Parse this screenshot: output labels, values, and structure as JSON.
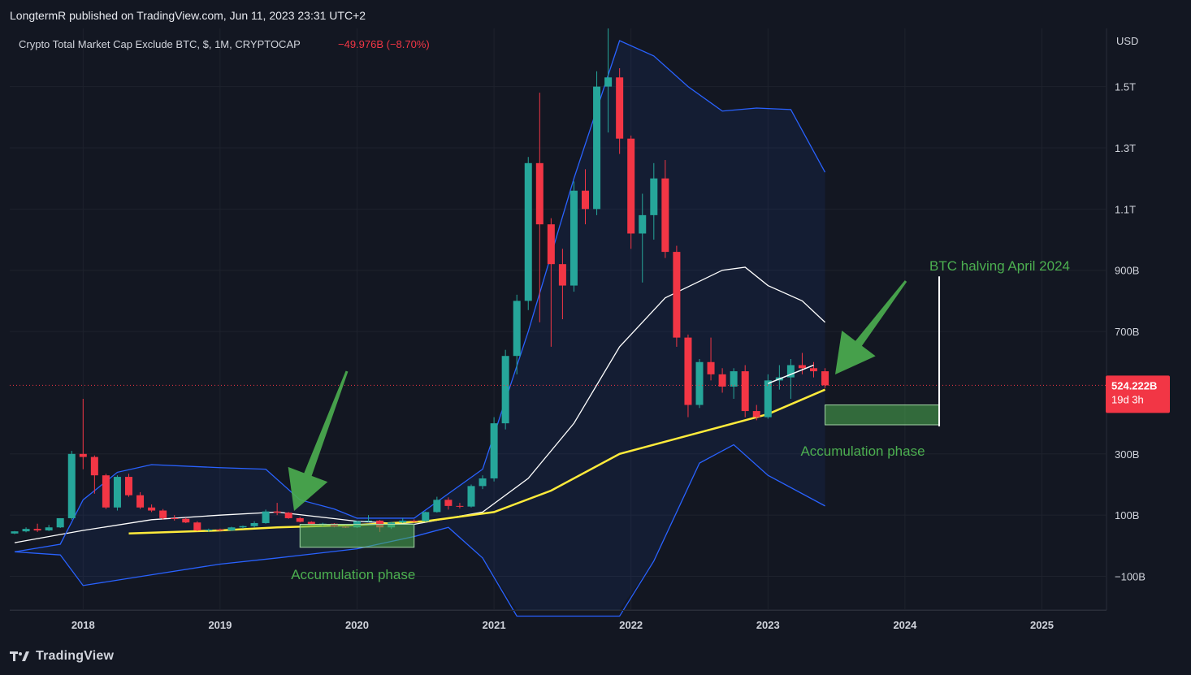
{
  "header": {
    "publisher_line": "LongtermR published on TradingView.com, Jun 11, 2023 23:31 UTC+2"
  },
  "legend": {
    "symbol": "Crypto Total Market Cap Exclude BTC, $, 1M, CRYPTOCAP",
    "change": "−49.976B (−8.70%)"
  },
  "price_tag": {
    "price": "524.222B",
    "countdown": "19d 3h",
    "color": "#f23645"
  },
  "footer": {
    "brand": "TradingView"
  },
  "colors": {
    "background": "#131722",
    "up": "#26a69a",
    "down": "#f23645",
    "band": "#2962ff",
    "ma_basis": "#ffffff",
    "ma_long": "#ffeb3b",
    "annotation": "#4caf50"
  },
  "chart_data": {
    "type": "candlestick",
    "title": "Crypto Total Market Cap Exclude BTC, $, 1M, CRYPTOCAP",
    "currency": "USD",
    "x": {
      "ticks": [
        "2018",
        "2019",
        "2020",
        "2021",
        "2022",
        "2023",
        "2024",
        "2025"
      ],
      "start": "2017-07",
      "end": "2025-08"
    },
    "y": {
      "ticks": [
        "1.5T",
        "1.3T",
        "1.1T",
        "900B",
        "700B",
        "300B",
        "100B",
        "−100B"
      ],
      "tick_values": [
        1500,
        1300,
        1100,
        900,
        700,
        300,
        100,
        -100
      ],
      "unit": "USD (billions)",
      "range": [
        -210,
        1690
      ]
    },
    "candles": [
      {
        "t": "2017-07",
        "o": 40,
        "h": 48,
        "l": 38,
        "c": 47
      },
      {
        "t": "2017-08",
        "o": 47,
        "h": 60,
        "l": 44,
        "c": 55
      },
      {
        "t": "2017-09",
        "o": 55,
        "h": 72,
        "l": 45,
        "c": 50
      },
      {
        "t": "2017-10",
        "o": 50,
        "h": 68,
        "l": 48,
        "c": 60
      },
      {
        "t": "2017-11",
        "o": 60,
        "h": 90,
        "l": 58,
        "c": 90
      },
      {
        "t": "2017-12",
        "o": 90,
        "h": 310,
        "l": 85,
        "c": 300
      },
      {
        "t": "2018-01",
        "o": 300,
        "h": 480,
        "l": 250,
        "c": 290
      },
      {
        "t": "2018-02",
        "o": 290,
        "h": 295,
        "l": 170,
        "c": 230
      },
      {
        "t": "2018-03",
        "o": 230,
        "h": 235,
        "l": 120,
        "c": 125
      },
      {
        "t": "2018-04",
        "o": 125,
        "h": 230,
        "l": 115,
        "c": 225
      },
      {
        "t": "2018-05",
        "o": 225,
        "h": 235,
        "l": 160,
        "c": 165
      },
      {
        "t": "2018-06",
        "o": 165,
        "h": 175,
        "l": 120,
        "c": 125
      },
      {
        "t": "2018-07",
        "o": 125,
        "h": 135,
        "l": 110,
        "c": 115
      },
      {
        "t": "2018-08",
        "o": 115,
        "h": 120,
        "l": 85,
        "c": 90
      },
      {
        "t": "2018-09",
        "o": 90,
        "h": 100,
        "l": 82,
        "c": 88
      },
      {
        "t": "2018-10",
        "o": 88,
        "h": 92,
        "l": 74,
        "c": 76
      },
      {
        "t": "2018-11",
        "o": 76,
        "h": 80,
        "l": 48,
        "c": 50
      },
      {
        "t": "2018-12",
        "o": 50,
        "h": 56,
        "l": 45,
        "c": 53
      },
      {
        "t": "2019-01",
        "o": 53,
        "h": 56,
        "l": 48,
        "c": 50
      },
      {
        "t": "2019-02",
        "o": 50,
        "h": 62,
        "l": 48,
        "c": 60
      },
      {
        "t": "2019-03",
        "o": 60,
        "h": 66,
        "l": 56,
        "c": 64
      },
      {
        "t": "2019-04",
        "o": 64,
        "h": 80,
        "l": 60,
        "c": 74
      },
      {
        "t": "2019-05",
        "o": 74,
        "h": 118,
        "l": 72,
        "c": 112
      },
      {
        "t": "2019-06",
        "o": 112,
        "h": 140,
        "l": 100,
        "c": 108
      },
      {
        "t": "2019-07",
        "o": 108,
        "h": 110,
        "l": 88,
        "c": 90
      },
      {
        "t": "2019-08",
        "o": 90,
        "h": 94,
        "l": 76,
        "c": 78
      },
      {
        "t": "2019-09",
        "o": 78,
        "h": 80,
        "l": 66,
        "c": 68
      },
      {
        "t": "2019-10",
        "o": 68,
        "h": 75,
        "l": 64,
        "c": 72
      },
      {
        "t": "2019-11",
        "o": 72,
        "h": 74,
        "l": 60,
        "c": 62
      },
      {
        "t": "2019-12",
        "o": 62,
        "h": 65,
        "l": 58,
        "c": 60
      },
      {
        "t": "2020-01",
        "o": 60,
        "h": 82,
        "l": 58,
        "c": 80
      },
      {
        "t": "2020-02",
        "o": 80,
        "h": 100,
        "l": 78,
        "c": 82
      },
      {
        "t": "2020-03",
        "o": 82,
        "h": 84,
        "l": 45,
        "c": 60
      },
      {
        "t": "2020-04",
        "o": 60,
        "h": 78,
        "l": 55,
        "c": 76
      },
      {
        "t": "2020-05",
        "o": 76,
        "h": 90,
        "l": 74,
        "c": 82
      },
      {
        "t": "2020-06",
        "o": 82,
        "h": 86,
        "l": 76,
        "c": 80
      },
      {
        "t": "2020-07",
        "o": 80,
        "h": 112,
        "l": 78,
        "c": 110
      },
      {
        "t": "2020-08",
        "o": 110,
        "h": 160,
        "l": 108,
        "c": 150
      },
      {
        "t": "2020-09",
        "o": 150,
        "h": 158,
        "l": 118,
        "c": 130
      },
      {
        "t": "2020-10",
        "o": 130,
        "h": 140,
        "l": 122,
        "c": 128
      },
      {
        "t": "2020-11",
        "o": 128,
        "h": 200,
        "l": 125,
        "c": 195
      },
      {
        "t": "2020-12",
        "o": 195,
        "h": 230,
        "l": 185,
        "c": 220
      },
      {
        "t": "2021-01",
        "o": 220,
        "h": 420,
        "l": 210,
        "c": 400
      },
      {
        "t": "2021-02",
        "o": 400,
        "h": 640,
        "l": 380,
        "c": 620
      },
      {
        "t": "2021-03",
        "o": 620,
        "h": 820,
        "l": 560,
        "c": 800
      },
      {
        "t": "2021-04",
        "o": 800,
        "h": 1270,
        "l": 770,
        "c": 1250
      },
      {
        "t": "2021-05",
        "o": 1250,
        "h": 1480,
        "l": 730,
        "c": 1050
      },
      {
        "t": "2021-06",
        "o": 1050,
        "h": 1070,
        "l": 650,
        "c": 920
      },
      {
        "t": "2021-07",
        "o": 920,
        "h": 970,
        "l": 740,
        "c": 850
      },
      {
        "t": "2021-08",
        "o": 850,
        "h": 1190,
        "l": 830,
        "c": 1160
      },
      {
        "t": "2021-09",
        "o": 1160,
        "h": 1230,
        "l": 1050,
        "c": 1100
      },
      {
        "t": "2021-10",
        "o": 1100,
        "h": 1550,
        "l": 1080,
        "c": 1500
      },
      {
        "t": "2021-11",
        "o": 1500,
        "h": 1690,
        "l": 1350,
        "c": 1530
      },
      {
        "t": "2021-12",
        "o": 1530,
        "h": 1560,
        "l": 1280,
        "c": 1330
      },
      {
        "t": "2022-01",
        "o": 1330,
        "h": 1340,
        "l": 970,
        "c": 1020
      },
      {
        "t": "2022-02",
        "o": 1020,
        "h": 1150,
        "l": 860,
        "c": 1080
      },
      {
        "t": "2022-03",
        "o": 1080,
        "h": 1250,
        "l": 1000,
        "c": 1200
      },
      {
        "t": "2022-04",
        "o": 1200,
        "h": 1260,
        "l": 940,
        "c": 960
      },
      {
        "t": "2022-05",
        "o": 960,
        "h": 980,
        "l": 650,
        "c": 680
      },
      {
        "t": "2022-06",
        "o": 680,
        "h": 690,
        "l": 420,
        "c": 460
      },
      {
        "t": "2022-07",
        "o": 460,
        "h": 610,
        "l": 450,
        "c": 600
      },
      {
        "t": "2022-08",
        "o": 600,
        "h": 680,
        "l": 540,
        "c": 560
      },
      {
        "t": "2022-09",
        "o": 560,
        "h": 580,
        "l": 500,
        "c": 520
      },
      {
        "t": "2022-10",
        "o": 520,
        "h": 580,
        "l": 480,
        "c": 570
      },
      {
        "t": "2022-11",
        "o": 570,
        "h": 590,
        "l": 420,
        "c": 440
      },
      {
        "t": "2022-12",
        "o": 440,
        "h": 460,
        "l": 410,
        "c": 420
      },
      {
        "t": "2023-01",
        "o": 420,
        "h": 560,
        "l": 415,
        "c": 540
      },
      {
        "t": "2023-02",
        "o": 540,
        "h": 590,
        "l": 510,
        "c": 550
      },
      {
        "t": "2023-03",
        "o": 550,
        "h": 610,
        "l": 480,
        "c": 590
      },
      {
        "t": "2023-04",
        "o": 590,
        "h": 630,
        "l": 560,
        "c": 580
      },
      {
        "t": "2023-05",
        "o": 580,
        "h": 600,
        "l": 550,
        "c": 570
      },
      {
        "t": "2023-06",
        "o": 570,
        "h": 580,
        "l": 515,
        "c": 524
      }
    ],
    "overlays": [
      {
        "type": "ma",
        "color": "#ffffff",
        "points": [
          [
            "2017-07",
            10
          ],
          [
            "2018-01",
            50
          ],
          [
            "2018-07",
            85
          ],
          [
            "2019-01",
            100
          ],
          [
            "2019-06",
            110
          ],
          [
            "2020-01",
            80
          ],
          [
            "2020-06",
            70
          ],
          [
            "2020-12",
            110
          ],
          [
            "2021-04",
            220
          ],
          [
            "2021-08",
            400
          ],
          [
            "2021-12",
            650
          ],
          [
            "2022-04",
            810
          ],
          [
            "2022-09",
            900
          ],
          [
            "2022-11",
            910
          ],
          [
            "2023-01",
            850
          ],
          [
            "2023-04",
            800
          ],
          [
            "2023-06",
            730
          ]
        ]
      },
      {
        "type": "ma",
        "color": "#ffeb3b",
        "points": [
          [
            "2018-05",
            40
          ],
          [
            "2019-01",
            50
          ],
          [
            "2019-06",
            60
          ],
          [
            "2020-01",
            68
          ],
          [
            "2020-07",
            80
          ],
          [
            "2021-01",
            110
          ],
          [
            "2021-06",
            180
          ],
          [
            "2021-12",
            300
          ],
          [
            "2022-06",
            360
          ],
          [
            "2023-01",
            430
          ],
          [
            "2023-06",
            510
          ]
        ]
      },
      {
        "type": "band_upper",
        "color": "#2962ff",
        "points": [
          [
            "2017-07",
            -20
          ],
          [
            "2017-11",
            5
          ],
          [
            "2018-01",
            150
          ],
          [
            "2018-04",
            240
          ],
          [
            "2018-07",
            265
          ],
          [
            "2019-01",
            255
          ],
          [
            "2019-05",
            250
          ],
          [
            "2019-08",
            150
          ],
          [
            "2019-11",
            120
          ],
          [
            "2020-01",
            90
          ],
          [
            "2020-06",
            90
          ],
          [
            "2020-12",
            250
          ],
          [
            "2021-04",
            700
          ],
          [
            "2021-08",
            1200
          ],
          [
            "2021-12",
            1650
          ],
          [
            "2022-03",
            1600
          ],
          [
            "2022-06",
            1500
          ],
          [
            "2022-09",
            1420
          ],
          [
            "2022-12",
            1430
          ],
          [
            "2023-03",
            1425
          ],
          [
            "2023-06",
            1220
          ]
        ]
      },
      {
        "type": "band_lower",
        "color": "#2962ff",
        "points": [
          [
            "2017-07",
            -20
          ],
          [
            "2017-11",
            -30
          ],
          [
            "2018-01",
            -130
          ],
          [
            "2018-07",
            -95
          ],
          [
            "2019-01",
            -60
          ],
          [
            "2019-06",
            -40
          ],
          [
            "2020-01",
            -10
          ],
          [
            "2020-06",
            30
          ],
          [
            "2020-09",
            60
          ],
          [
            "2020-12",
            -40
          ],
          [
            "2021-03",
            -230
          ],
          [
            "2021-12",
            -230
          ],
          [
            "2022-03",
            -50
          ],
          [
            "2022-07",
            270
          ],
          [
            "2022-10",
            330
          ],
          [
            "2023-01",
            230
          ],
          [
            "2023-06",
            130
          ]
        ]
      }
    ],
    "drawings": {
      "arrows": [
        "down arrow to 2019 bottom",
        "down arrow to current candle"
      ],
      "boxes": [
        {
          "from": "2019-08",
          "to": "2020-06",
          "label": "Accumulation phase"
        },
        {
          "from": "2023-06",
          "to": "2024-04",
          "label": "Accumulation phase"
        }
      ],
      "vline": {
        "at": "2024-04",
        "label": "BTC halving April 2024"
      }
    },
    "labels": {
      "currency_label": "USD",
      "accumulation_1": "Accumulation phase",
      "accumulation_2": "Accumulation phase",
      "halving": "BTC halving April 2024"
    },
    "grid": true,
    "current_price": 524.222
  }
}
